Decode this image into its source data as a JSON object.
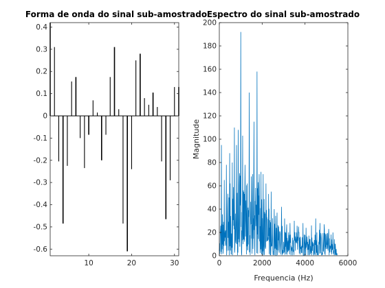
{
  "chart_data": [
    {
      "type": "bar",
      "title": "Forma de onda do sinal sub-amostrado",
      "xlabel": "",
      "ylabel": "",
      "xlim": [
        1,
        31
      ],
      "ylim": [
        -0.63,
        0.42
      ],
      "xticks": [
        10,
        20,
        30
      ],
      "yticks": [
        -0.6,
        -0.5,
        -0.4,
        -0.3,
        -0.2,
        -0.1,
        0,
        0.1,
        0.2,
        0.3,
        0.4
      ],
      "ytick_labels": [
        "-0.6",
        "-0.5",
        "-0.4",
        "-0.3",
        "-0.2",
        "-0.1",
        "0",
        "0.1",
        "0.2",
        "0.3",
        "0.4"
      ],
      "grid": false,
      "color": "#000000",
      "x": [
        1,
        2,
        3,
        4,
        5,
        6,
        7,
        8,
        9,
        10,
        11,
        12,
        13,
        14,
        15,
        16,
        17,
        18,
        19,
        20,
        21,
        22,
        23,
        24,
        25,
        26,
        27,
        28,
        29,
        30,
        31
      ],
      "values": [
        0.42,
        0.31,
        -0.205,
        -0.485,
        -0.225,
        0.155,
        0.175,
        -0.1,
        -0.235,
        -0.085,
        0.07,
        0.015,
        -0.2,
        -0.085,
        0.175,
        0.31,
        0.03,
        -0.485,
        -0.61,
        -0.24,
        0.25,
        0.28,
        0.08,
        0.05,
        0.105,
        0.04,
        -0.205,
        -0.465,
        -0.29,
        0.13,
        0.13
      ]
    },
    {
      "type": "line",
      "title": "Espectro do sinal sub-amostrado",
      "xlabel": "Frequencia (Hz)",
      "ylabel": "Magnitude",
      "xlim": [
        0,
        6000
      ],
      "ylim": [
        0,
        200
      ],
      "xticks": [
        0,
        2000,
        4000,
        6000
      ],
      "yticks": [
        0,
        20,
        40,
        60,
        80,
        100,
        120,
        140,
        160,
        180,
        200
      ],
      "grid": false,
      "color": "#0072BD",
      "x_start": 0,
      "x_step": 11,
      "x_end": 5500,
      "envelope": [
        [
          0,
          8
        ],
        [
          50,
          35
        ],
        [
          120,
          45
        ],
        [
          200,
          30
        ],
        [
          300,
          40
        ],
        [
          400,
          55
        ],
        [
          500,
          62
        ],
        [
          600,
          70
        ],
        [
          700,
          72
        ],
        [
          800,
          60
        ],
        [
          900,
          75
        ],
        [
          1000,
          70
        ],
        [
          1100,
          65
        ],
        [
          1200,
          55
        ],
        [
          1300,
          60
        ],
        [
          1400,
          58
        ],
        [
          1500,
          55
        ],
        [
          1600,
          62
        ],
        [
          1700,
          60
        ],
        [
          1800,
          55
        ],
        [
          1900,
          50
        ],
        [
          2000,
          45
        ],
        [
          2100,
          42
        ],
        [
          2200,
          40
        ],
        [
          2300,
          44
        ],
        [
          2400,
          38
        ],
        [
          2500,
          36
        ],
        [
          2600,
          30
        ],
        [
          2700,
          32
        ],
        [
          2800,
          28
        ],
        [
          2900,
          26
        ],
        [
          3000,
          25
        ],
        [
          3200,
          22
        ],
        [
          3400,
          20
        ],
        [
          3600,
          22
        ],
        [
          3800,
          20
        ],
        [
          4000,
          18
        ],
        [
          4200,
          16
        ],
        [
          4400,
          20
        ],
        [
          4600,
          18
        ],
        [
          4800,
          22
        ],
        [
          5000,
          20
        ],
        [
          5200,
          16
        ],
        [
          5400,
          12
        ],
        [
          5500,
          10
        ]
      ],
      "peaks": [
        [
          100,
          95
        ],
        [
          230,
          65
        ],
        [
          330,
          78
        ],
        [
          480,
          88
        ],
        [
          600,
          80
        ],
        [
          700,
          110
        ],
        [
          800,
          95
        ],
        [
          880,
          108
        ],
        [
          1000,
          192
        ],
        [
          1090,
          103
        ],
        [
          1200,
          78
        ],
        [
          1300,
          62
        ],
        [
          1400,
          140
        ],
        [
          1500,
          68
        ],
        [
          1620,
          115
        ],
        [
          1760,
          158
        ],
        [
          1860,
          70
        ],
        [
          1950,
          72
        ],
        [
          2050,
          70
        ],
        [
          2180,
          62
        ],
        [
          2300,
          53
        ],
        [
          2420,
          55
        ],
        [
          2560,
          40
        ],
        [
          2700,
          37
        ],
        [
          2900,
          42
        ],
        [
          3050,
          32
        ],
        [
          3300,
          28
        ],
        [
          3500,
          30
        ],
        [
          3700,
          25
        ],
        [
          3900,
          28
        ],
        [
          4050,
          24
        ],
        [
          4300,
          26
        ],
        [
          4500,
          32
        ],
        [
          4700,
          28
        ],
        [
          4900,
          27
        ],
        [
          5100,
          23
        ],
        [
          5300,
          20
        ]
      ]
    }
  ]
}
